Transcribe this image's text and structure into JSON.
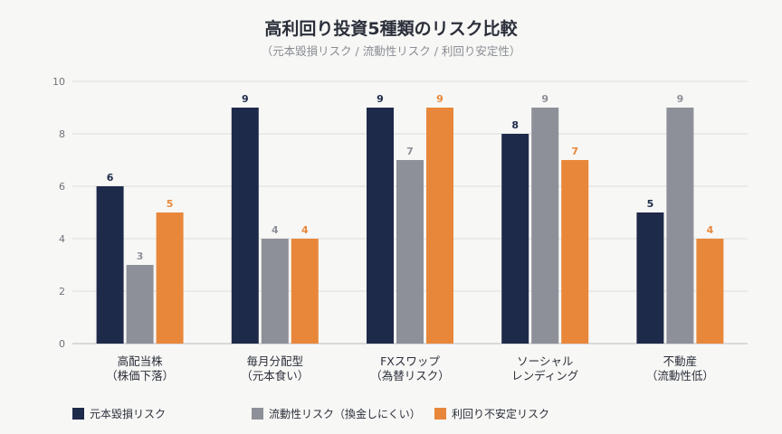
{
  "chart_data": {
    "type": "bar",
    "title": "高利回り投資5種類のリスク比較",
    "subtitle": "（元本毀損リスク / 流動性リスク / 利回り安定性）",
    "categories": [
      [
        "高配当株",
        "（株価下落）"
      ],
      [
        "毎月分配型",
        "（元本食い）"
      ],
      [
        "FXスワップ",
        "（為替リスク）"
      ],
      [
        "ソーシャル",
        "レンディング"
      ],
      [
        "不動産",
        "（流動性低）"
      ]
    ],
    "series": [
      {
        "name": "元本毀損リスク",
        "color": "#1e2a4a",
        "values": [
          6,
          9,
          9,
          8,
          5
        ]
      },
      {
        "name": "流動性リスク（換金しにくい）",
        "color": "#8d9099",
        "values": [
          3,
          4,
          7,
          9,
          9
        ]
      },
      {
        "name": "利回り不安定リスク",
        "color": "#e8873a",
        "values": [
          5,
          4,
          9,
          7,
          4
        ]
      }
    ],
    "ylim": [
      0,
      10
    ],
    "yticks": [
      0,
      2,
      4,
      6,
      8,
      10
    ],
    "grid": true,
    "legend": "bottom"
  }
}
